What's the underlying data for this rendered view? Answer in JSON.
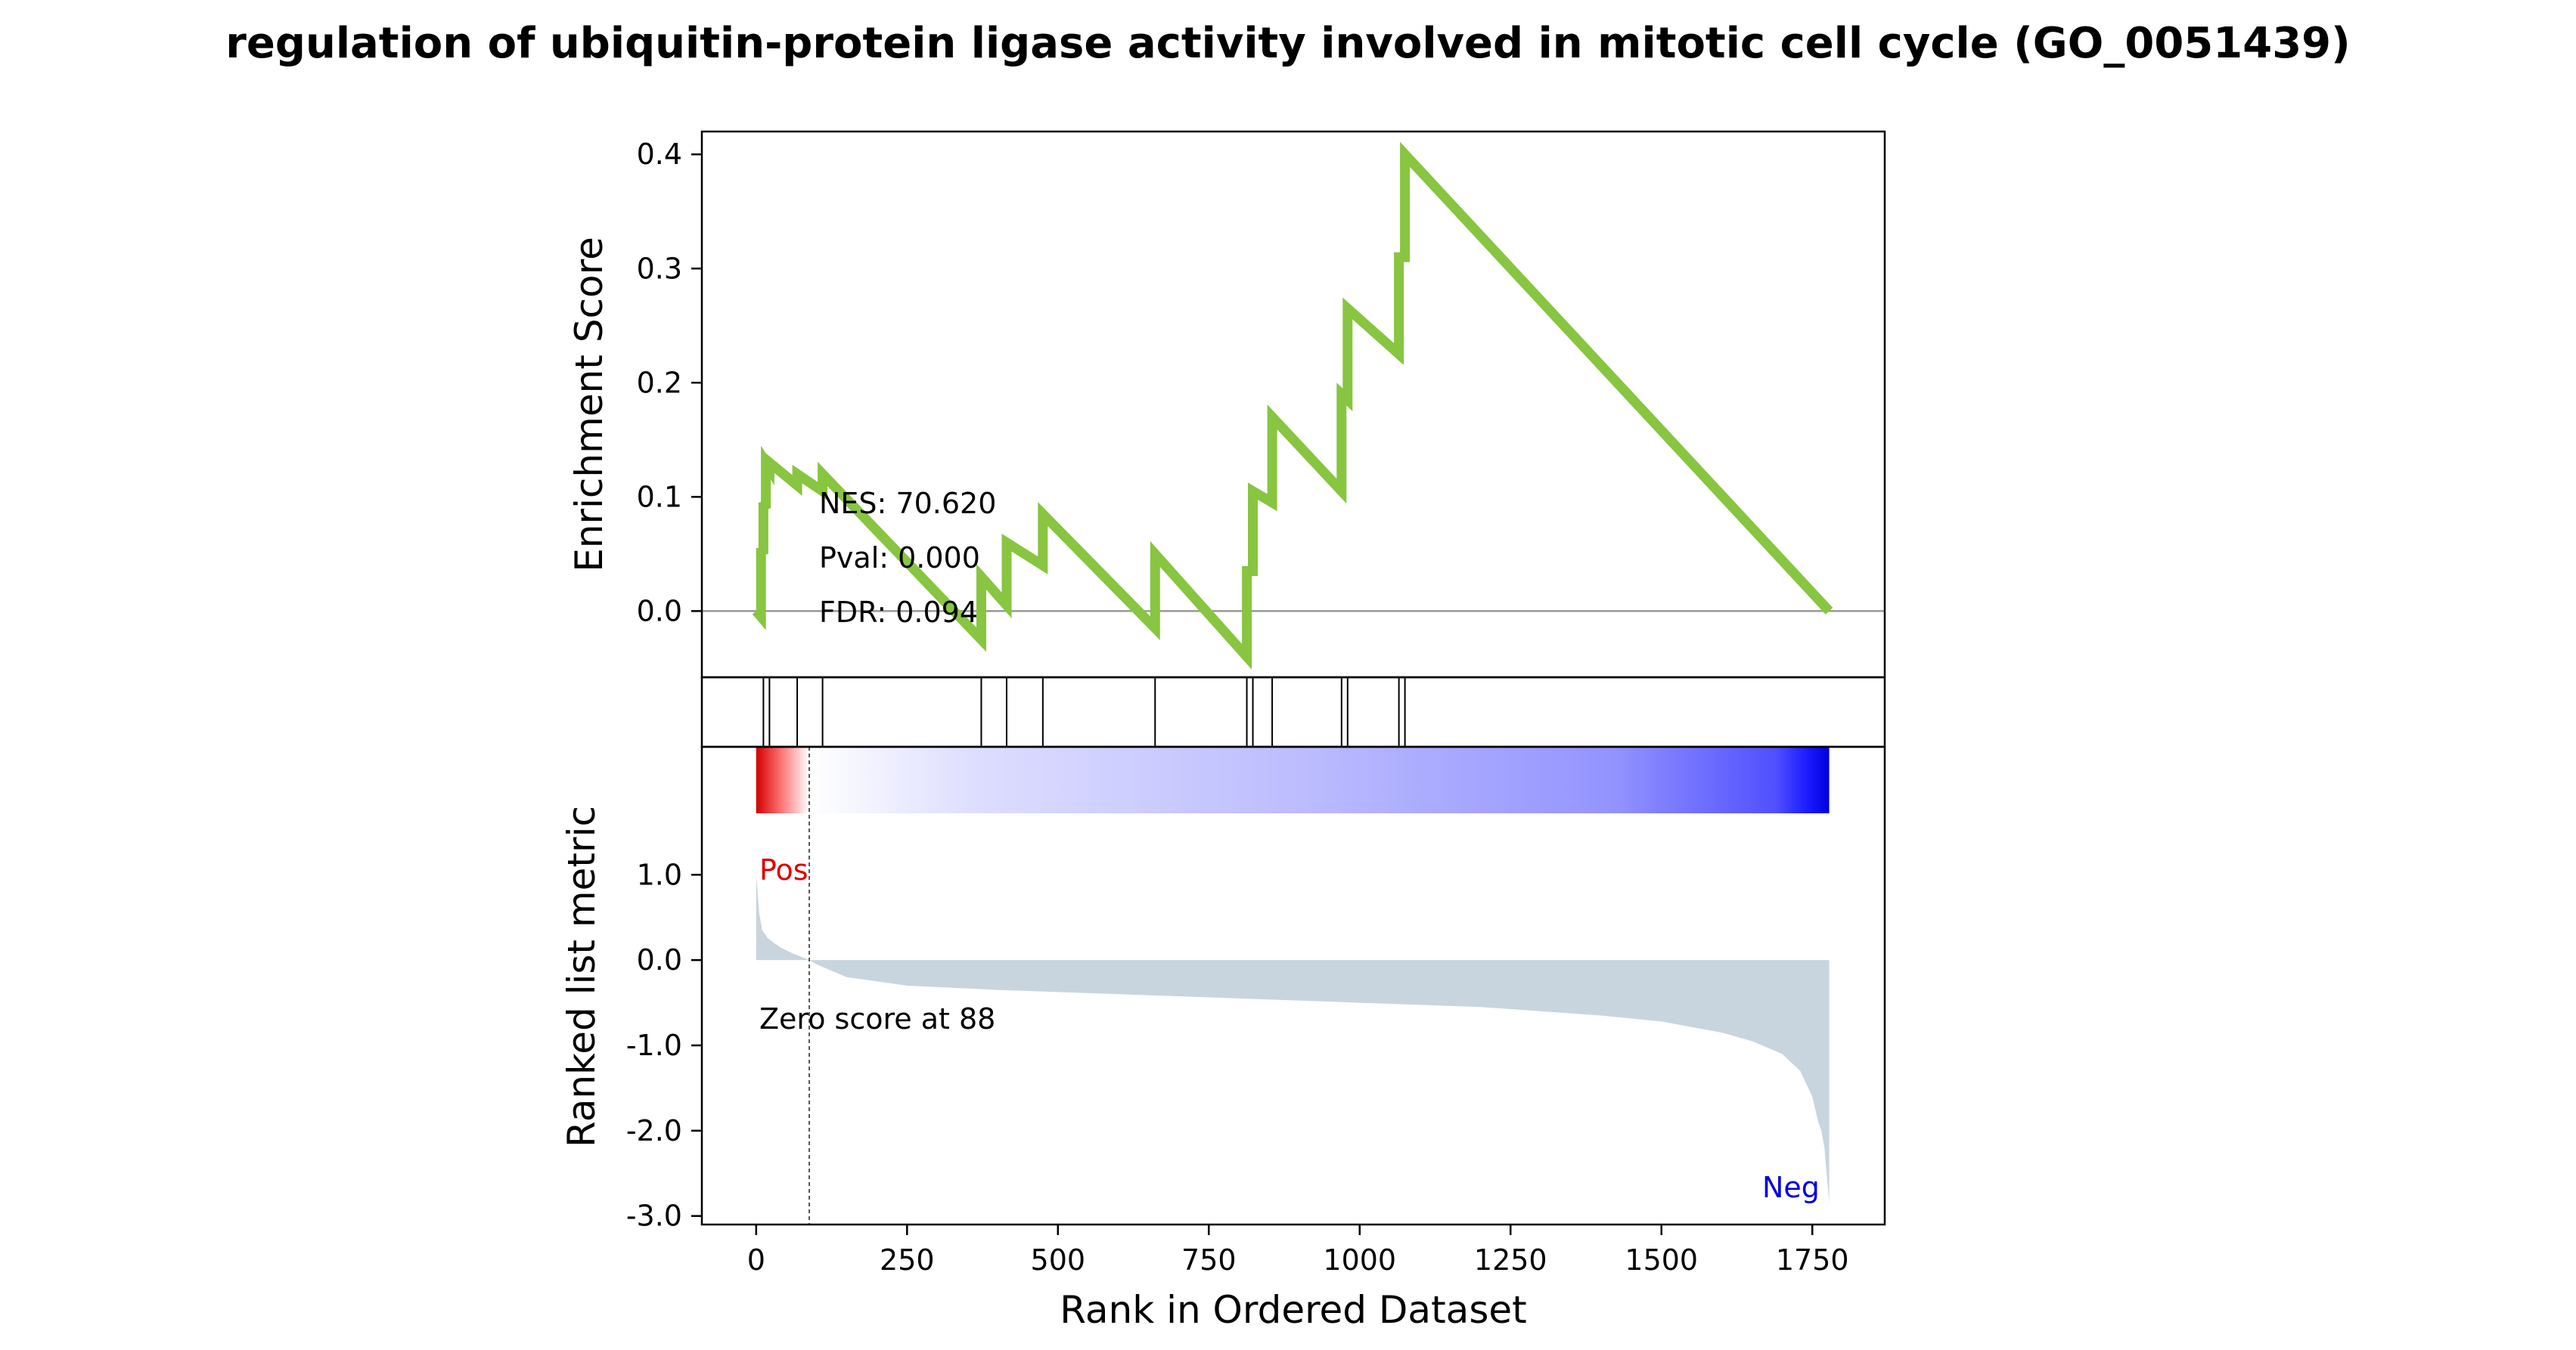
{
  "chart_data": {
    "type": "line",
    "title": "regulation of ubiquitin-protein ligase activity involved in mitotic cell cycle (GO_0051439)",
    "xlabel": "Rank in Ordered Dataset",
    "xlim": [
      -90,
      1870
    ],
    "x_ticks": [
      0,
      250,
      500,
      750,
      1000,
      1250,
      1500,
      1750
    ],
    "x_tick_labels": [
      "0",
      "250",
      "500",
      "750",
      "1000",
      "1250",
      "1500",
      "1750"
    ],
    "es_panel": {
      "ylabel": "Enrichment Score",
      "ylim": [
        -0.058,
        0.42
      ],
      "y_ticks": [
        0.0,
        0.1,
        0.2,
        0.3,
        0.4
      ],
      "y_tick_labels": [
        "0.0",
        "0.1",
        "0.2",
        "0.3",
        "0.4"
      ],
      "line_color": "#88c540",
      "zero_line_color": "#999999",
      "series": [
        {
          "x": [
            0,
            8,
            8,
            12,
            12,
            16,
            16,
            22,
            22,
            68,
            68,
            110,
            110,
            373,
            373,
            415,
            415,
            475,
            475,
            661,
            661,
            813,
            813,
            823,
            823,
            855,
            855,
            970,
            970,
            980,
            980,
            1065,
            1065,
            1075,
            1075,
            1778
          ],
          "y": [
            0.0,
            -0.005,
            0.055,
            0.05,
            0.095,
            0.09,
            0.13,
            0.125,
            0.13,
            0.11,
            0.12,
            0.105,
            0.12,
            -0.025,
            0.03,
            0.005,
            0.06,
            0.04,
            0.085,
            -0.015,
            0.05,
            -0.04,
            0.035,
            0.035,
            0.105,
            0.095,
            0.17,
            0.105,
            0.19,
            0.185,
            0.265,
            0.225,
            0.31,
            0.31,
            0.4,
            0.0
          ]
        }
      ],
      "annotations": [
        {
          "label": "NES",
          "text": "NES: 70.620"
        },
        {
          "label": "Pval",
          "text": "Pval: 0.000"
        },
        {
          "label": "FDR",
          "text": "FDR: 0.094"
        }
      ]
    },
    "hits_panel": {
      "positions": [
        12,
        22,
        68,
        110,
        373,
        415,
        475,
        661,
        813,
        823,
        855,
        970,
        980,
        1065,
        1075
      ]
    },
    "heat_bar": {
      "colormap": "seismic",
      "n": 1778,
      "zero_rank": 88
    },
    "metric_panel": {
      "ylabel": "Ranked list metric",
      "ylim": [
        -3.1,
        2.5
      ],
      "y_ticks": [
        1.0,
        0.0,
        -1.0,
        -2.0,
        -3.0
      ],
      "y_tick_labels": [
        "1.0",
        "0.0",
        "-1.0",
        "-2.0",
        "-3.0"
      ],
      "fill_color": "#c9d5de",
      "pos_label": "Pos",
      "pos_color": "#e00000",
      "neg_label": "Neg",
      "neg_color": "#0000e0",
      "zero_text": "Zero score at 88",
      "zero_rank": 88,
      "curve": {
        "x": [
          0,
          5,
          10,
          20,
          40,
          60,
          88,
          100,
          150,
          250,
          400,
          600,
          800,
          1000,
          1200,
          1400,
          1500,
          1600,
          1650,
          1700,
          1730,
          1750,
          1760,
          1765,
          1770,
          1775,
          1778
        ],
        "y": [
          1.0,
          0.55,
          0.35,
          0.25,
          0.15,
          0.08,
          0.0,
          -0.05,
          -0.2,
          -0.3,
          -0.35,
          -0.4,
          -0.45,
          -0.5,
          -0.55,
          -0.65,
          -0.72,
          -0.85,
          -0.95,
          -1.1,
          -1.3,
          -1.6,
          -1.9,
          -2.0,
          -2.2,
          -2.6,
          -2.85
        ]
      }
    }
  }
}
